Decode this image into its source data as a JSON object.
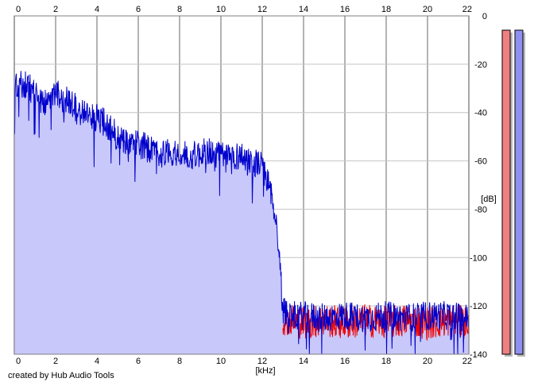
{
  "footer": "created by Hub Audio Tools",
  "chart_data": {
    "type": "area",
    "xlabel": "[kHz]",
    "ylabel": "[dB]",
    "xlim": [
      0,
      22
    ],
    "ylim": [
      -140,
      0
    ],
    "x_ticks": [
      0,
      2,
      4,
      6,
      8,
      10,
      12,
      14,
      16,
      18,
      20,
      22
    ],
    "y_ticks": [
      0,
      -20,
      -40,
      -60,
      -80,
      -100,
      -120,
      -140
    ],
    "grid": true,
    "colors": {
      "fill": "#c8c8fa",
      "left": "#0000cc",
      "right": "#ee0000",
      "meter_left": "#f08080",
      "meter_right": "#9090f0"
    },
    "series": [
      {
        "x": [
          0,
          0.5,
          1,
          1.5,
          2,
          2.5,
          3,
          3.5,
          4,
          4.5,
          5,
          5.5,
          6,
          6.5,
          7,
          7.5,
          8,
          8.5,
          9,
          9.5,
          10,
          10.5,
          11,
          11.5,
          12,
          12.5,
          12.8,
          13,
          13.5,
          14,
          15,
          16,
          17,
          18,
          19,
          20,
          21,
          22
        ],
        "y": [
          -30,
          -28,
          -32,
          -36,
          -32,
          -35,
          -38,
          -41,
          -42,
          -45,
          -50,
          -52,
          -53,
          -55,
          -57,
          -56,
          -57,
          -58,
          -57,
          -56,
          -58,
          -58,
          -58,
          -60,
          -62,
          -75,
          -95,
          -122,
          -124,
          -124,
          -125,
          -124,
          -125,
          -124,
          -125,
          -124,
          -124,
          -125
        ]
      },
      {
        "x": [
          13,
          14,
          15,
          16,
          17,
          18,
          19,
          20,
          21,
          22
        ],
        "y": [
          -125,
          -127,
          -126,
          -127,
          -126,
          -127,
          -126,
          -127,
          -126,
          -127
        ]
      }
    ],
    "meters": [
      {
        "level_db": -137
      },
      {
        "level_db": -137
      }
    ]
  }
}
